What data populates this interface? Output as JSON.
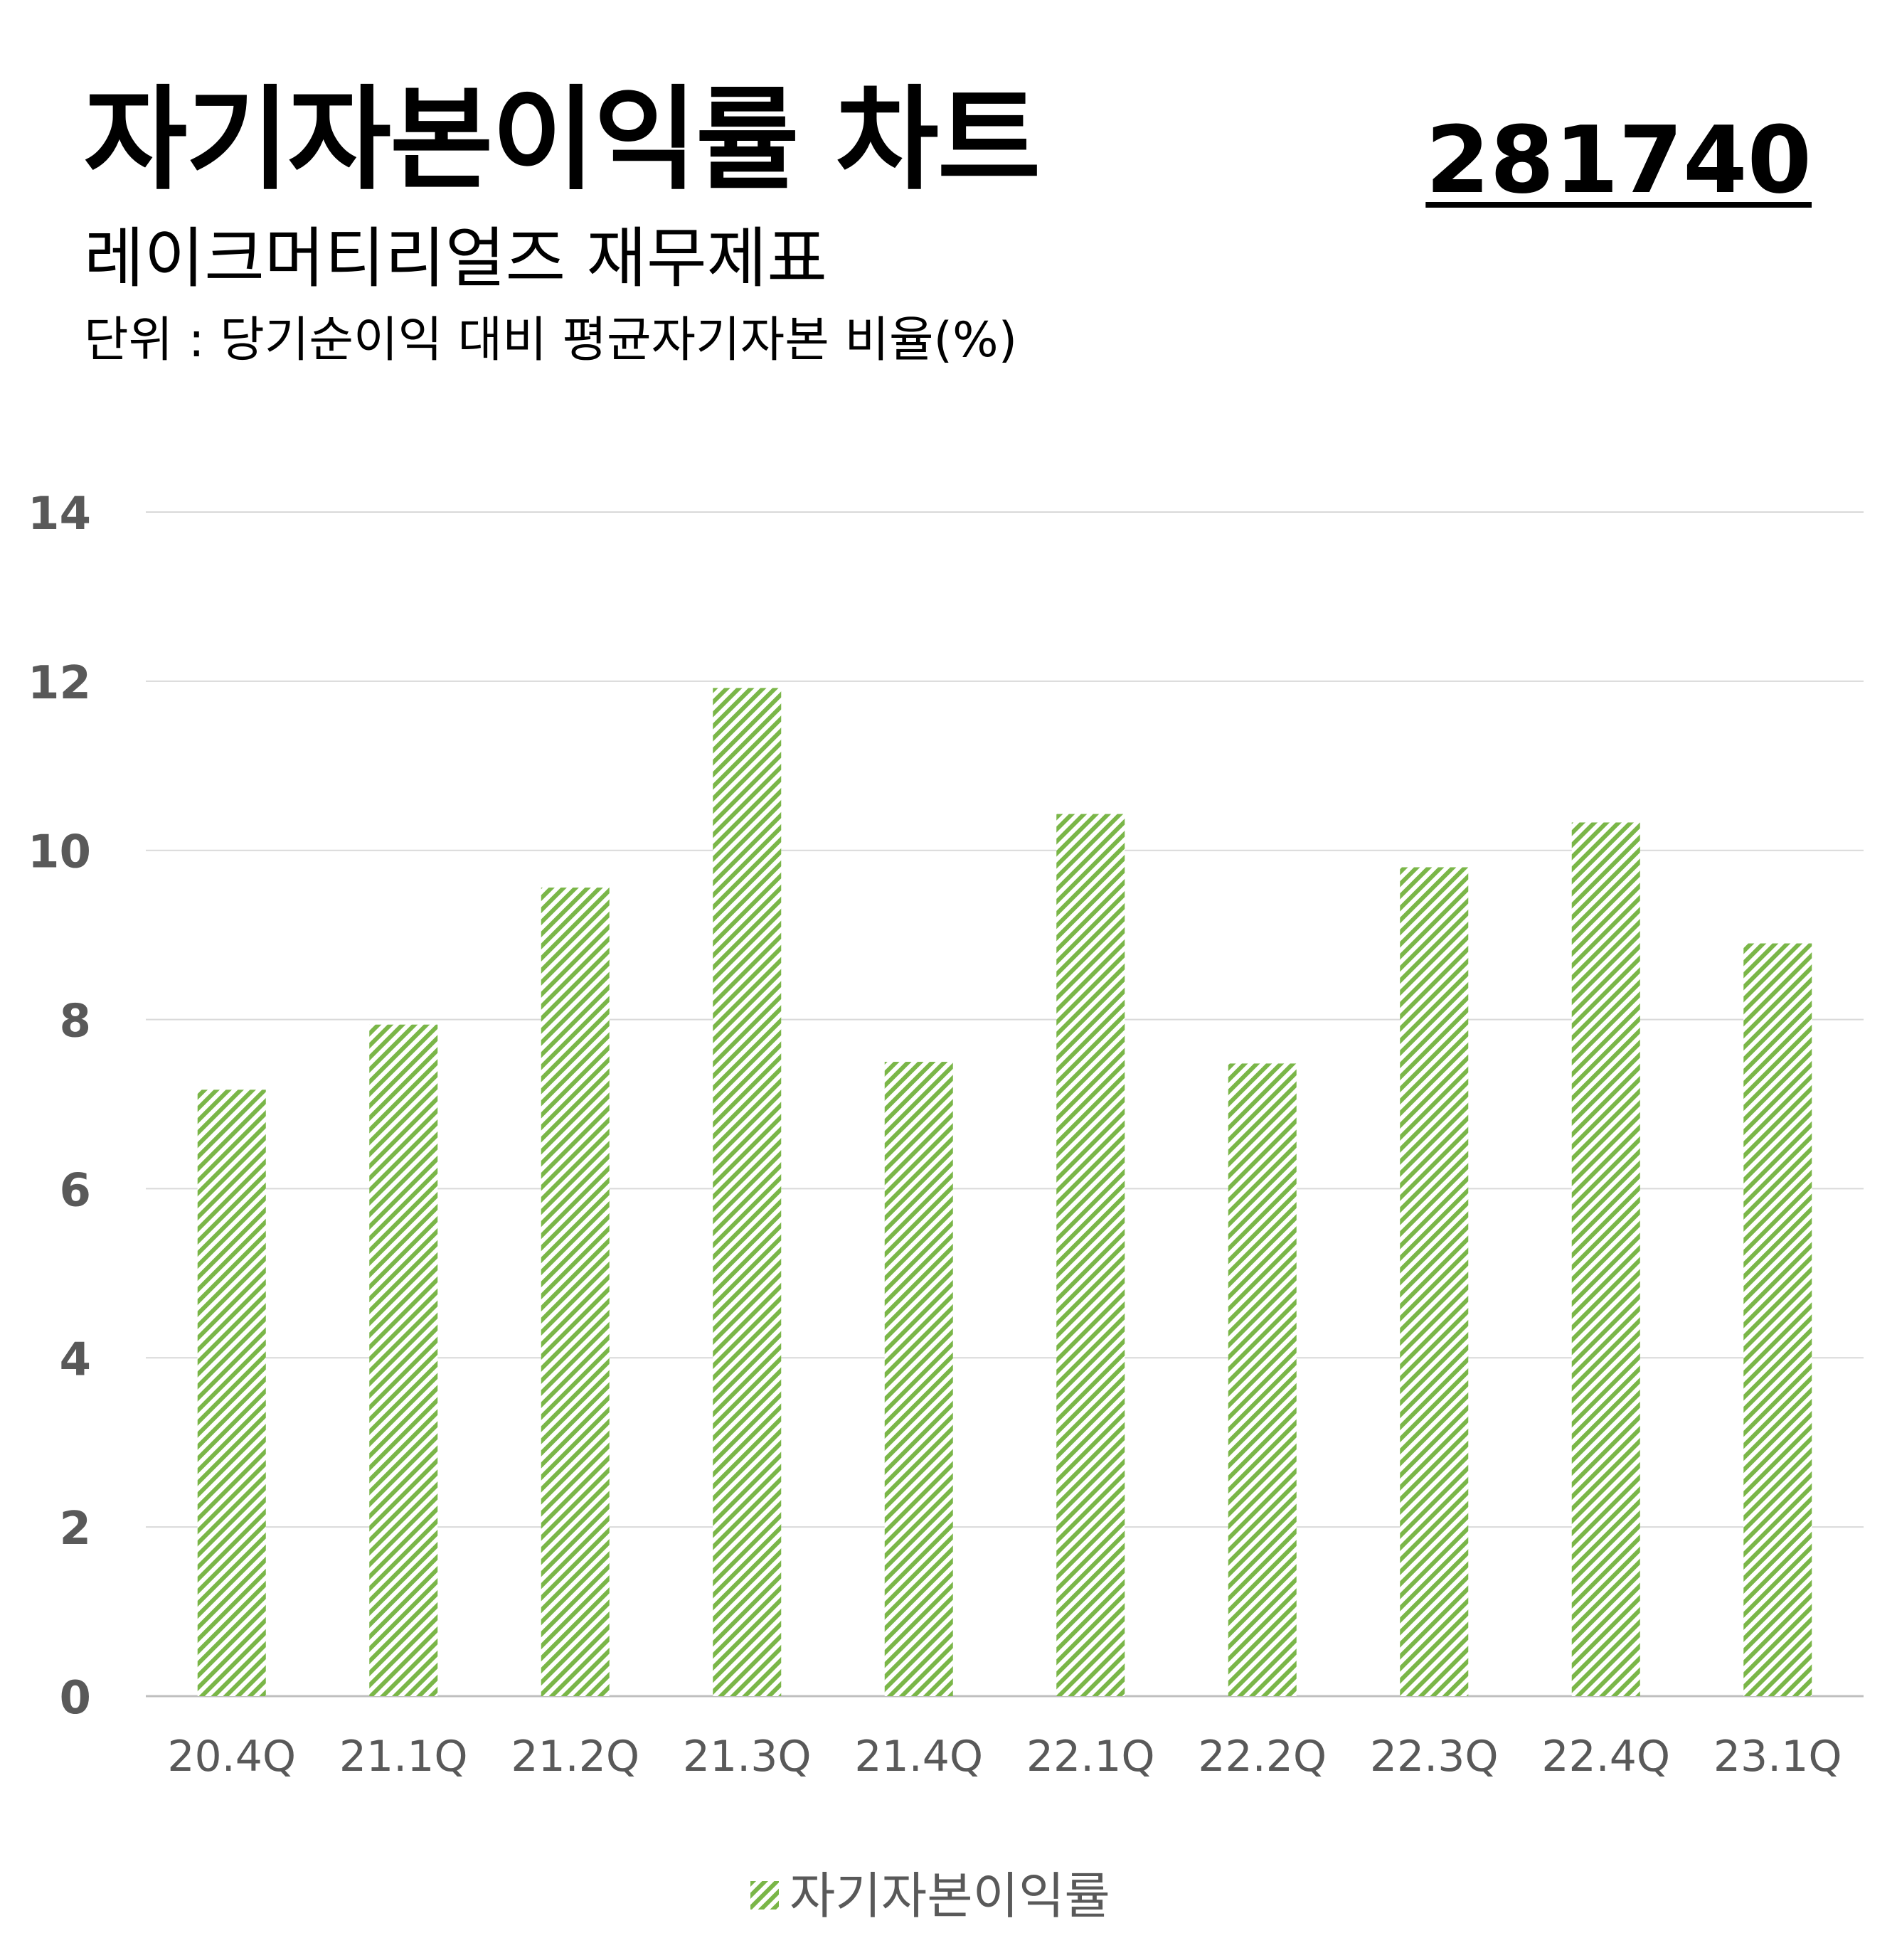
{
  "header": {
    "title": "자기자본이익률 차트",
    "code": "281740",
    "subtitle": "레이크머티리얼즈 재무제표",
    "unit": "단위 : 당기순이익 대비 평균자기자본 비율(%)"
  },
  "colors": {
    "bar": "#7ab648",
    "grid": "#d9d9d9",
    "axis_text": "#595959"
  },
  "chart_data": {
    "type": "bar",
    "categories": [
      "20.4Q",
      "21.1Q",
      "21.2Q",
      "21.3Q",
      "21.4Q",
      "22.1Q",
      "22.2Q",
      "22.3Q",
      "22.4Q",
      "23.1Q"
    ],
    "series": [
      {
        "name": "자기자본이익률",
        "values": [
          7.17,
          7.94,
          9.56,
          11.92,
          7.5,
          10.43,
          7.48,
          9.8,
          10.33,
          8.9
        ]
      }
    ],
    "yticks": [
      "0",
      "2",
      "4",
      "6",
      "8",
      "10",
      "12",
      "14"
    ],
    "ylim": [
      0,
      14
    ],
    "grid": true,
    "legend": "bottom-center",
    "fill": "diagonal-hatch"
  }
}
